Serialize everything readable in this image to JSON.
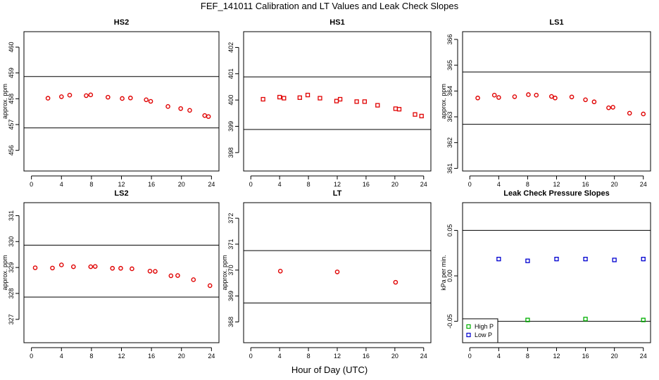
{
  "title": "FEF_141011  Calibration and LT Values and Leak Check Slopes",
  "xlabel": "Hour of Day (UTC)",
  "colors": {
    "point": "#e00000",
    "high_p": "#00b000",
    "low_p": "#0000d0",
    "line": "#000000"
  },
  "chart_data": [
    {
      "type": "scatter",
      "title": "HS2",
      "ylabel": "approx. ppm",
      "xlim": [
        -1,
        25
      ],
      "ylim": [
        455.2,
        460.6
      ],
      "xticks": [
        0,
        4,
        8,
        12,
        16,
        20,
        24
      ],
      "xtick_labels": [
        "0",
        "4",
        "8",
        "12",
        "16",
        "20",
        "24"
      ],
      "yticks": [
        456,
        457,
        458,
        459,
        460
      ],
      "ytick_labels": [
        "456",
        "457",
        "458",
        "459",
        "460"
      ],
      "hlines": [
        458.86,
        456.87
      ],
      "series": [
        {
          "marker": "circle",
          "x": [
            2.2,
            4.0,
            5.1,
            7.3,
            7.9,
            10.2,
            12.1,
            13.2,
            15.3,
            15.9,
            18.2,
            19.9,
            21.1,
            23.1,
            23.6
          ],
          "y": [
            458.02,
            458.08,
            458.14,
            458.12,
            458.15,
            458.06,
            458.01,
            458.03,
            457.96,
            457.9,
            457.7,
            457.62,
            457.55,
            457.35,
            457.31
          ]
        }
      ]
    },
    {
      "type": "scatter",
      "title": "HS1",
      "ylabel": "",
      "xlim": [
        -1,
        25
      ],
      "ylim": [
        397.3,
        402.6
      ],
      "xticks": [
        0,
        4,
        8,
        12,
        16,
        20,
        24
      ],
      "xtick_labels": [
        "0",
        "4",
        "8",
        "12",
        "16",
        "20",
        "24"
      ],
      "yticks": [
        398,
        399,
        400,
        401,
        402
      ],
      "ytick_labels": [
        "398",
        "399",
        "400",
        "401",
        "402"
      ],
      "hlines": [
        400.88,
        398.88
      ],
      "series": [
        {
          "marker": "square",
          "x": [
            1.7,
            4.0,
            4.6,
            6.8,
            7.9,
            9.6,
            11.9,
            12.4,
            14.7,
            15.8,
            17.6,
            20.1,
            20.6,
            22.8,
            23.7
          ],
          "y": [
            400.03,
            400.11,
            400.07,
            400.09,
            400.19,
            400.07,
            399.96,
            400.03,
            399.94,
            399.94,
            399.8,
            399.67,
            399.65,
            399.45,
            399.39
          ]
        }
      ]
    },
    {
      "type": "scatter",
      "title": "LS1",
      "ylabel": "approx. ppm",
      "xlim": [
        -1,
        25
      ],
      "ylim": [
        360.9,
        366.3
      ],
      "xticks": [
        0,
        4,
        8,
        12,
        16,
        20,
        24
      ],
      "xtick_labels": [
        "0",
        "4",
        "8",
        "12",
        "16",
        "20",
        "24"
      ],
      "yticks": [
        361,
        362,
        363,
        364,
        365,
        366
      ],
      "ytick_labels": [
        "361",
        "362",
        "363",
        "364",
        "365",
        "366"
      ],
      "hlines": [
        364.74,
        362.71
      ],
      "series": [
        {
          "marker": "circle",
          "x": [
            1.1,
            3.4,
            4.0,
            6.2,
            8.1,
            9.2,
            11.3,
            11.8,
            14.1,
            16.0,
            17.2,
            19.2,
            19.8,
            22.1,
            24.0
          ],
          "y": [
            363.73,
            363.84,
            363.75,
            363.78,
            363.86,
            363.84,
            363.79,
            363.73,
            363.77,
            363.66,
            363.58,
            363.35,
            363.37,
            363.14,
            363.11
          ]
        }
      ]
    },
    {
      "type": "scatter",
      "title": "LS2",
      "ylabel": "approx. ppm",
      "xlim": [
        -1,
        25
      ],
      "ylim": [
        326.1,
        331.5
      ],
      "xticks": [
        0,
        4,
        8,
        12,
        16,
        20,
        24
      ],
      "xtick_labels": [
        "0",
        "4",
        "8",
        "12",
        "16",
        "20",
        "24"
      ],
      "yticks": [
        327,
        328,
        329,
        330,
        331
      ],
      "ytick_labels": [
        "327",
        "328",
        "329",
        "330",
        "331"
      ],
      "hlines": [
        329.86,
        327.86
      ],
      "series": [
        {
          "marker": "circle",
          "x": [
            0.5,
            2.8,
            4.0,
            5.6,
            7.9,
            8.5,
            10.8,
            11.9,
            13.4,
            15.8,
            16.5,
            18.6,
            19.5,
            21.6,
            23.8
          ],
          "y": [
            328.99,
            328.98,
            329.1,
            329.03,
            329.03,
            329.04,
            328.97,
            328.97,
            328.95,
            328.86,
            328.85,
            328.68,
            328.69,
            328.53,
            328.3
          ]
        }
      ]
    },
    {
      "type": "scatter",
      "title": "LT",
      "ylabel": "approx. ppm",
      "xlim": [
        -1,
        25
      ],
      "ylim": [
        367.2,
        372.6
      ],
      "xticks": [
        0,
        4,
        8,
        12,
        16,
        20,
        24
      ],
      "xtick_labels": [
        "0",
        "4",
        "8",
        "12",
        "16",
        "20",
        "24"
      ],
      "yticks": [
        368,
        369,
        370,
        371,
        372
      ],
      "ytick_labels": [
        "368",
        "369",
        "370",
        "371",
        "372"
      ],
      "hlines": [
        370.75,
        368.73
      ],
      "series": [
        {
          "marker": "circle",
          "x": [
            4.1,
            12.0,
            20.1
          ],
          "y": [
            369.96,
            369.93,
            369.53
          ]
        }
      ]
    },
    {
      "type": "scatter",
      "title": "Leak Check Pressure Slopes",
      "ylabel": "kPa per min.",
      "xlim": [
        -1,
        25
      ],
      "ylim": [
        -0.0735,
        0.0805
      ],
      "xticks": [
        0,
        4,
        8,
        12,
        16,
        20,
        24
      ],
      "xtick_labels": [
        "0",
        "4",
        "8",
        "12",
        "16",
        "20",
        "24"
      ],
      "yticks": [
        -0.05,
        0.0,
        0.05
      ],
      "ytick_labels": [
        "-0.05",
        "0.00",
        "0.05"
      ],
      "hlines": [
        0.05,
        -0.05
      ],
      "legend": {
        "position": "bottom-left",
        "entries": [
          "High P",
          "Low P"
        ]
      },
      "series": [
        {
          "name": "High P",
          "marker": "square",
          "color": "#00b000",
          "x": [
            8.0,
            16.0,
            24.0
          ],
          "y": [
            -0.0485,
            -0.0475,
            -0.0485
          ]
        },
        {
          "name": "Low P",
          "marker": "square",
          "color": "#0000d0",
          "x": [
            4.0,
            8.0,
            12.0,
            16.0,
            20.0,
            24.0
          ],
          "y": [
            0.0185,
            0.0165,
            0.0185,
            0.0185,
            0.0175,
            0.0185
          ]
        }
      ]
    }
  ]
}
